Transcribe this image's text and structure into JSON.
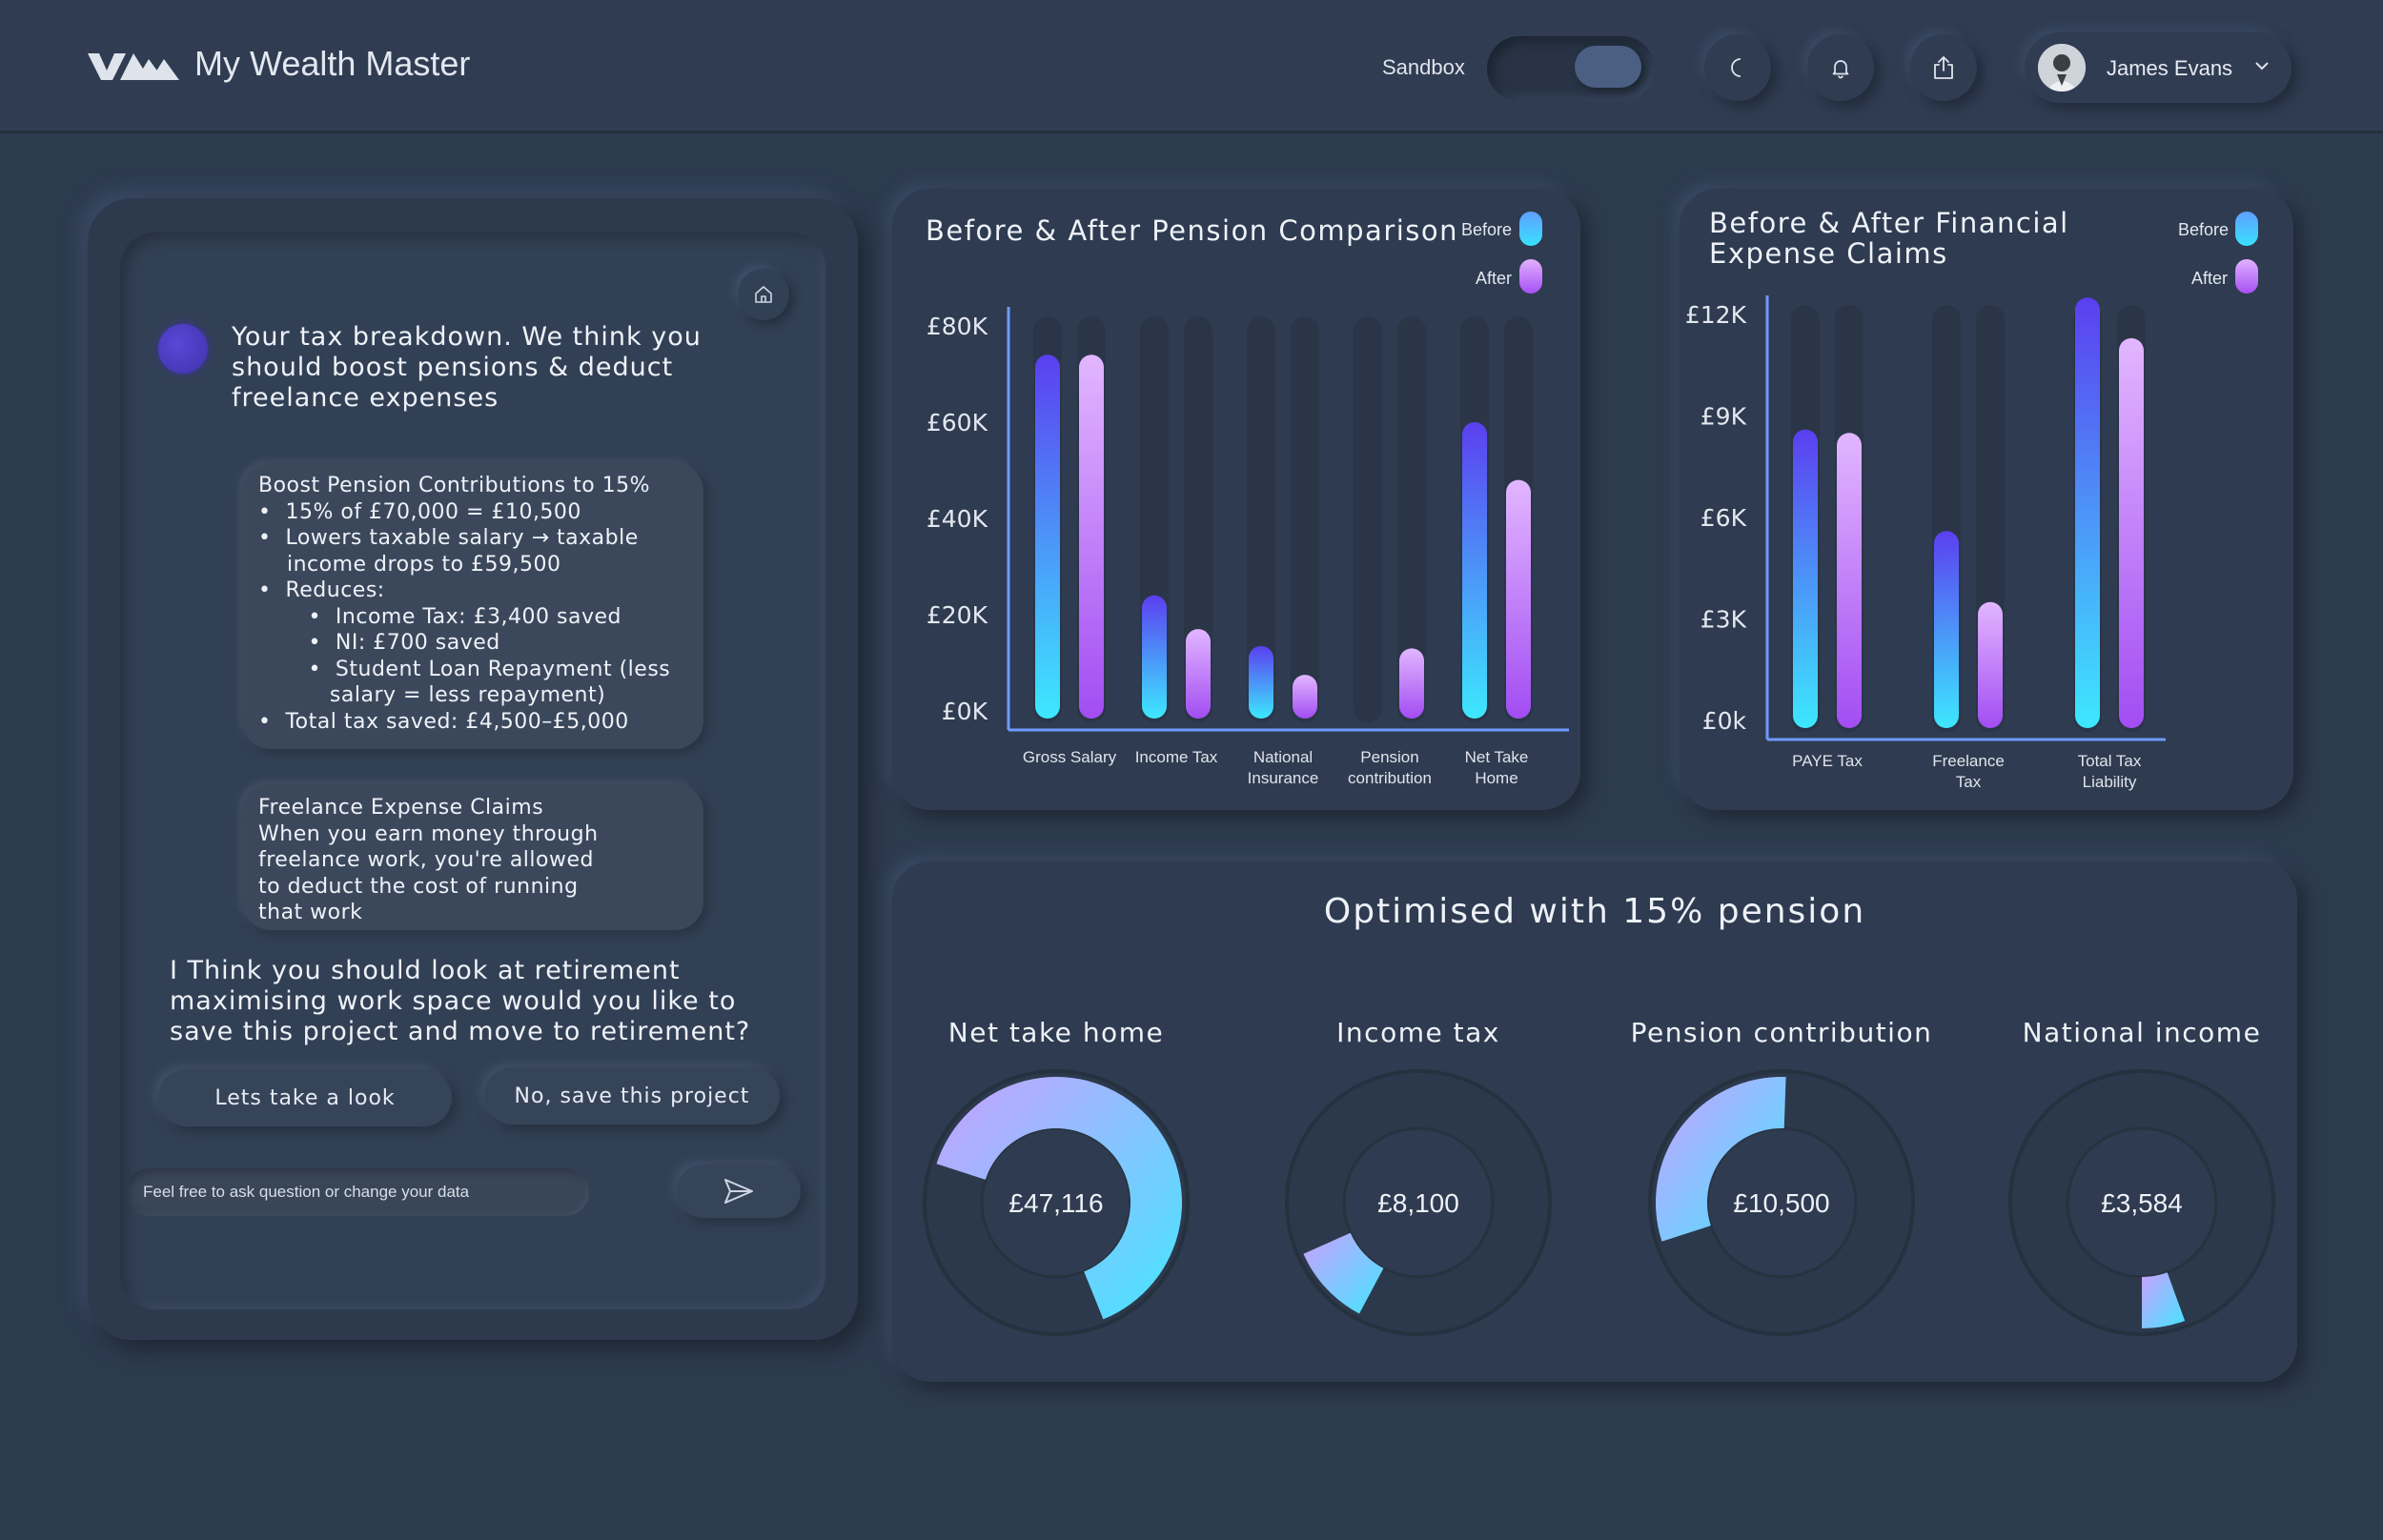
{
  "app": {
    "title": "My Wealth Master"
  },
  "header": {
    "sandbox_label": "Sandbox",
    "user_name": "James Evans"
  },
  "chat": {
    "intro": [
      "Your tax breakdown. We think you",
      "should boost pensions & deduct",
      "freelance expenses"
    ],
    "bubble1": [
      "Boost Pension Contributions to 15%",
      "•  15% of £70,000 = £10,500",
      "•  Lowers taxable salary → taxable",
      "    income drops to £59,500",
      "•  Reduces:",
      "       •  Income Tax: £3,400 saved",
      "       •  NI: £700 saved",
      "       •  Student Loan Repayment (less",
      "          salary = less repayment)",
      "•  Total tax saved: £4,500–£5,000"
    ],
    "bubble2": [
      "Freelance Expense Claims",
      "When you earn money through",
      "freelance work, you're allowed",
      "to deduct the cost of running",
      "that work"
    ],
    "question": [
      "I Think you should look at retirement",
      "maximising work space would you like to",
      "save this project and move to retirement?"
    ],
    "btn_look": "Lets take a look",
    "btn_save": "No, save this project",
    "input_placeholder": "Feel free to ask question or change your data"
  },
  "colors": {
    "before_top": "#5b3ff0",
    "before_bottom": "#3de8ff",
    "after_top": "#e2b6ff",
    "after_bottom": "#a24df2"
  },
  "chart_data": [
    {
      "type": "bar",
      "title": "Before & After Pension Comparison",
      "categories": [
        [
          "Gross Salary"
        ],
        [
          "Income Tax"
        ],
        [
          "National",
          "Insurance"
        ],
        [
          "Pension",
          "contribution"
        ],
        [
          "Net Take",
          "Home"
        ]
      ],
      "series": [
        {
          "name": "Before",
          "values": [
            74000,
            24000,
            13500,
            0,
            60000
          ]
        },
        {
          "name": "After",
          "values": [
            74000,
            17000,
            7500,
            13000,
            48000
          ]
        }
      ],
      "ylim": [
        0,
        80000
      ],
      "yticks": [
        "£0K",
        "£20K",
        "£40K",
        "£60K",
        "£80K"
      ],
      "legend": [
        "Before",
        "After"
      ]
    },
    {
      "type": "bar",
      "title": "Before & After Financial Expense Claims",
      "title_lines": [
        "Before & After Financial",
        "Expense Claims"
      ],
      "categories": [
        [
          "PAYE Tax"
        ],
        [
          "Freelance",
          "Tax"
        ],
        [
          "Total Tax",
          "Liability"
        ]
      ],
      "series": [
        {
          "name": "Before",
          "values": [
            8600,
            5600,
            12500
          ]
        },
        {
          "name": "After",
          "values": [
            8500,
            3500,
            11300
          ]
        }
      ],
      "ylim": [
        0,
        12000
      ],
      "yticks": [
        "£0k",
        "£3K",
        "£6K",
        "£9K",
        "£12K"
      ],
      "legend": [
        "Before",
        "After"
      ]
    }
  ],
  "summary": {
    "title": "Optimised with 15% pension",
    "donuts": [
      {
        "label": "Net take home",
        "value": "£47,116",
        "start_deg": -72,
        "sweep_deg": 230
      },
      {
        "label": "Income tax",
        "value": "£8,100",
        "start_deg": 208,
        "sweep_deg": 38
      },
      {
        "label": "Pension contribution",
        "value": "£10,500",
        "start_deg": 252,
        "sweep_deg": 110
      },
      {
        "label": "National income",
        "value": "£3,584",
        "start_deg": 160,
        "sweep_deg": 20
      }
    ]
  }
}
